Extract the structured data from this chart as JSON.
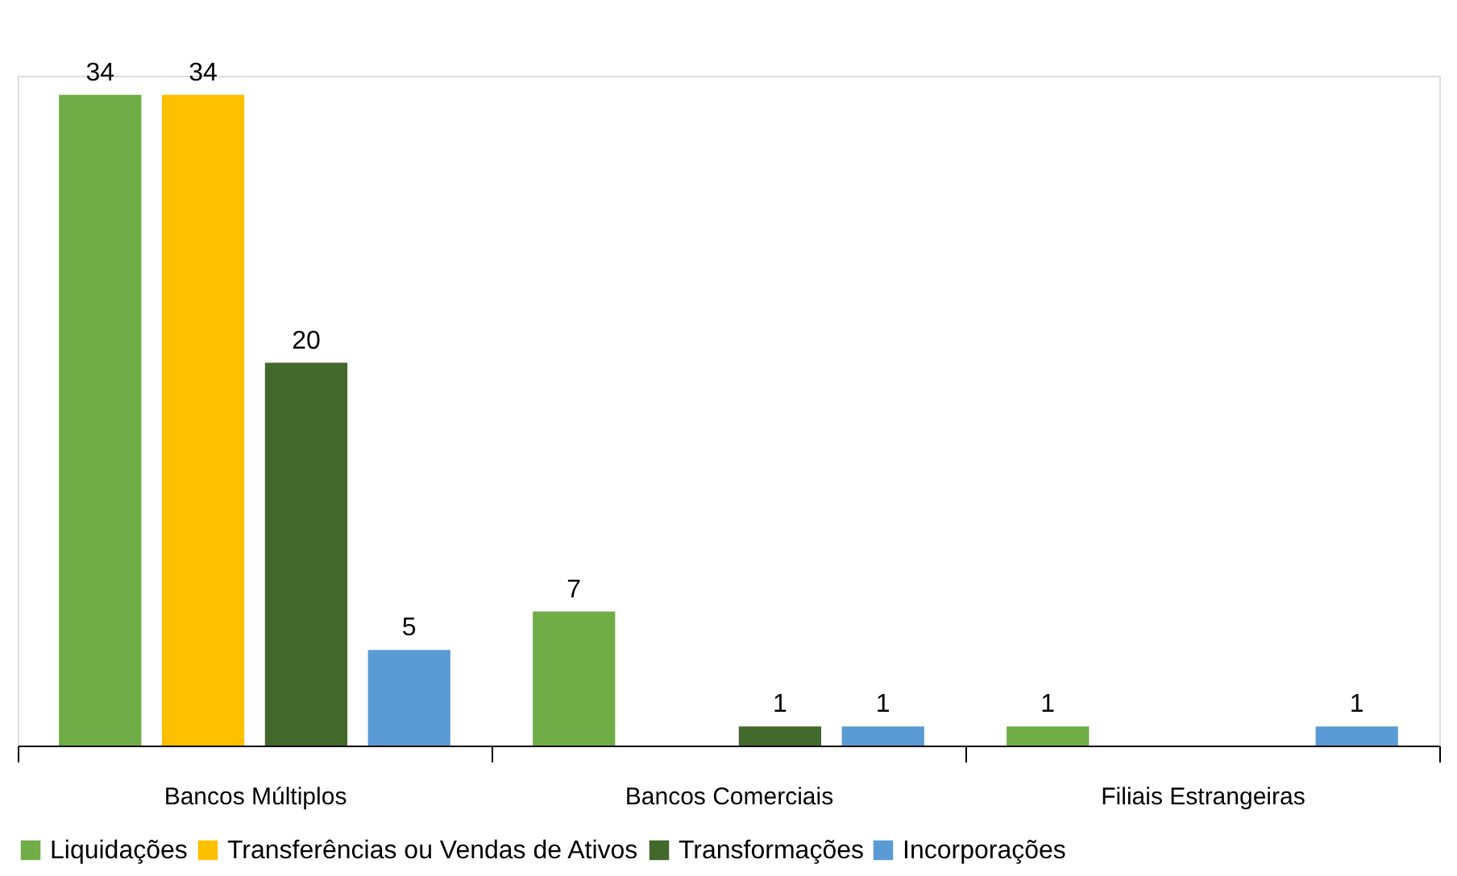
{
  "chart_data": {
    "type": "bar",
    "categories": [
      "Bancos Múltiplos",
      "Bancos Comerciais",
      "Filiais Estrangeiras"
    ],
    "series": [
      {
        "name": "Liquidações",
        "color": "#70ad47",
        "values": [
          34,
          7,
          1
        ]
      },
      {
        "name": "Transferências ou Vendas de Ativos",
        "color": "#ffc000",
        "values": [
          34,
          null,
          null
        ]
      },
      {
        "name": "Transformações",
        "color": "#43682b",
        "values": [
          20,
          1,
          null
        ]
      },
      {
        "name": "Incorporações",
        "color": "#5b9bd5",
        "values": [
          5,
          1,
          1
        ]
      }
    ],
    "data_labels": true,
    "legend": "bottom"
  }
}
